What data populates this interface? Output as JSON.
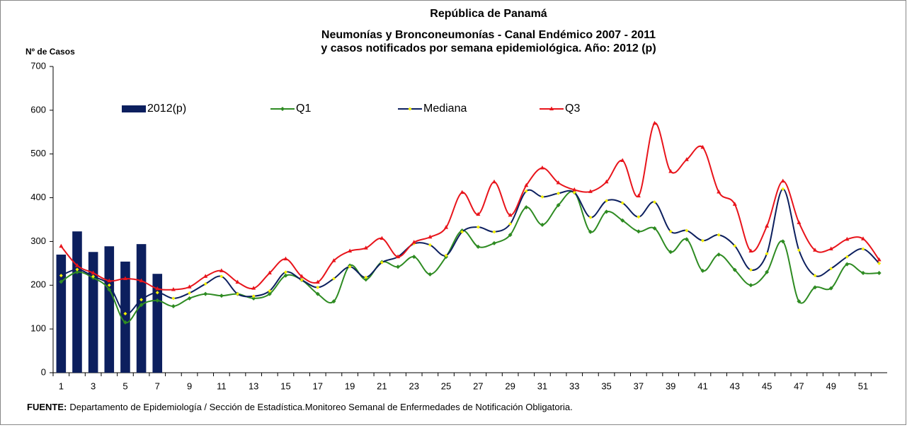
{
  "chart_data": {
    "type": "bar_line",
    "title": [
      "República de Panamá",
      "Neumonías y Bronconeumonías - Canal Endémico 2007  -  2011",
      "y casos notificados por semana epidemiológica. Año: 2012 (p)"
    ],
    "y_label": "Nº de Casos",
    "source_label": "FUENTE:",
    "source": "Departamento de Epidemiología / Sección de Estadística.Monitoreo Semanal de Enfermedades de Notificación Obligatoria.",
    "categories": [
      1,
      null,
      3,
      null,
      5,
      null,
      7,
      null,
      9,
      null,
      11,
      null,
      13,
      null,
      15,
      null,
      17,
      null,
      19,
      null,
      21,
      null,
      23,
      null,
      25,
      null,
      27,
      null,
      29,
      null,
      31,
      null,
      33,
      null,
      35,
      null,
      37,
      null,
      39,
      null,
      41,
      null,
      43,
      null,
      45,
      null,
      47,
      null,
      49,
      null,
      51,
      null
    ],
    "ylim": [
      0,
      700
    ],
    "yticks": [
      0,
      100,
      200,
      300,
      400,
      500,
      600,
      700
    ],
    "grid": false,
    "series": [
      {
        "name": "2012(p)",
        "type": "bar",
        "color": "#0c1f5e",
        "values": [
          270,
          323,
          276,
          289,
          254,
          294,
          226,
          null,
          null,
          null,
          null,
          null,
          null,
          null,
          null,
          null,
          null,
          null,
          null,
          null,
          null,
          null,
          null,
          null,
          null,
          null,
          null,
          null,
          null,
          null,
          null,
          null,
          null,
          null,
          null,
          null,
          null,
          null,
          null,
          null,
          null,
          null,
          null,
          null,
          null,
          null,
          null,
          null,
          null,
          null,
          null,
          null
        ]
      },
      {
        "name": "Q1",
        "type": "line",
        "color": "#2e8b22",
        "marker": "diamond",
        "values": [
          208,
          230,
          217,
          190,
          115,
          155,
          165,
          152,
          170,
          180,
          176,
          180,
          170,
          180,
          222,
          212,
          180,
          163,
          245,
          213,
          253,
          242,
          265,
          225,
          265,
          325,
          288,
          296,
          315,
          378,
          338,
          383,
          412,
          322,
          368,
          348,
          323,
          330,
          276,
          305,
          233,
          270,
          235,
          200,
          230,
          300,
          163,
          195,
          193,
          248,
          228,
          228
        ]
      },
      {
        "name": "Mediana",
        "type": "line",
        "color": "#0c1f5e",
        "marker": "dot",
        "values": [
          222,
          236,
          220,
          200,
          135,
          167,
          183,
          170,
          182,
          203,
          220,
          180,
          175,
          187,
          230,
          212,
          195,
          215,
          242,
          218,
          252,
          265,
          295,
          292,
          268,
          322,
          333,
          322,
          340,
          415,
          402,
          410,
          412,
          355,
          393,
          388,
          356,
          390,
          323,
          325,
          302,
          315,
          290,
          235,
          272,
          420,
          280,
          222,
          238,
          265,
          283,
          250
        ]
      },
      {
        "name": "Q3",
        "type": "line",
        "color": "#e8141b",
        "marker": "triangle",
        "values": [
          289,
          245,
          228,
          210,
          215,
          210,
          192,
          190,
          196,
          220,
          233,
          207,
          193,
          228,
          260,
          220,
          207,
          256,
          278,
          285,
          307,
          265,
          298,
          310,
          332,
          412,
          362,
          436,
          360,
          428,
          468,
          434,
          418,
          414,
          436,
          485,
          404,
          570,
          460,
          487,
          515,
          413,
          385,
          278,
          335,
          438,
          343,
          280,
          283,
          305,
          306,
          258
        ]
      }
    ]
  }
}
